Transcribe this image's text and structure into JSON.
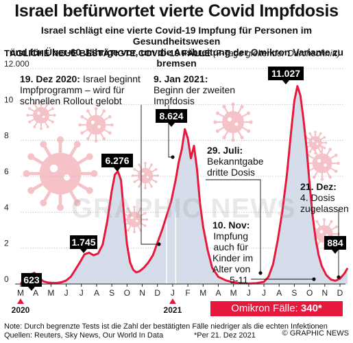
{
  "header": {
    "title": "Israel befürwortet vierte Covid Impfdosis",
    "subtitle_line1": "Israel schlägt eine vierte Covid-19 Impfung für Personen im Gesundheitswesen",
    "subtitle_line2": "und für Über-60-Jährige vor, um die Ausbreitung der Omikron Variante zu bremsen",
    "chart_heading": "TÄGLICHE NEUE BESTÄTIGTE COVID-19 FÄLLE",
    "chart_heading_note": "(7-Tage gleitender Durchschnitt)"
  },
  "chart_data": {
    "type": "area",
    "title": "TÄGLICHE NEUE BESTÄTIGTE COVID-19 FÄLLE",
    "subtitle": "(7-Tage gleitender Durchschnitt)",
    "ylim": [
      0,
      12000
    ],
    "y_ticks": [
      0,
      2000,
      4000,
      6000,
      8000,
      10000,
      12000
    ],
    "y_tick_labels": [
      "0",
      "2",
      "4",
      "6",
      "8",
      "10",
      "12.000"
    ],
    "x_labels": [
      "M",
      "A",
      "M",
      "J",
      "J",
      "A",
      "S",
      "O",
      "N",
      "D",
      "J",
      "F",
      "M",
      "A",
      "M",
      "J",
      "J",
      "A",
      "S",
      "O",
      "N",
      "D"
    ],
    "year_labels": [
      "2020",
      "2021"
    ],
    "series": [
      {
        "x": [
          0,
          0.3,
          0.6,
          0.9,
          1.2,
          1.5,
          1.8,
          2.1,
          2.4,
          2.7,
          3.0,
          3.3,
          3.6,
          3.9,
          4.2,
          4.5,
          4.8,
          5.1,
          5.4,
          5.7,
          6.0,
          6.2,
          6.4,
          6.6,
          6.8,
          7.0,
          7.2,
          7.4,
          7.6,
          7.8,
          8.1,
          8.4,
          8.7,
          9.0,
          9.3,
          9.6,
          9.9,
          10.2,
          10.4,
          10.6,
          10.8,
          11.0,
          11.2,
          11.4,
          11.6,
          11.8,
          12.0,
          12.3,
          12.6,
          13.0,
          13.5,
          14.0,
          14.5,
          15.0,
          15.5,
          16.0,
          16.3,
          16.6,
          16.9,
          17.2,
          17.5,
          17.8,
          18.0,
          18.2,
          18.4,
          18.6,
          18.8,
          19.0,
          19.2,
          19.4,
          19.6,
          19.8,
          20.1,
          20.4,
          20.7,
          21.0,
          21.3,
          21.5
        ],
        "values": [
          20,
          250,
          500,
          623,
          350,
          150,
          80,
          60,
          60,
          100,
          200,
          400,
          800,
          1200,
          1650,
          1745,
          1600,
          1700,
          2200,
          3500,
          5200,
          6100,
          6276,
          5800,
          3900,
          2200,
          1200,
          800,
          650,
          700,
          900,
          1200,
          1600,
          2300,
          3000,
          3800,
          4600,
          5800,
          6800,
          7500,
          8624,
          8100,
          7000,
          7700,
          6400,
          4500,
          3200,
          1900,
          900,
          400,
          200,
          90,
          50,
          30,
          50,
          120,
          400,
          1100,
          2400,
          4000,
          6000,
          8600,
          10200,
          11027,
          10500,
          9200,
          7600,
          5600,
          3800,
          2500,
          1600,
          1000,
          500,
          250,
          180,
          300,
          600,
          884
        ]
      }
    ],
    "peak_labels": [
      "623",
      "1.745",
      "6.276",
      "8.624",
      "11.027",
      "884"
    ]
  },
  "annotations": {
    "a1_date": "19. Dez 2020:",
    "a1_text1": "Israel beginnt",
    "a1_text2": "Impfprogramm – wird für",
    "a1_text3": "schnellen Rollout gelobt",
    "a2_date": "9. Jan 2021:",
    "a2_text1": "Beginn der zweiten",
    "a2_text2": "Impfdosis",
    "a3_date": "29. Juli:",
    "a3_text1": "Bekanntgabe",
    "a3_text2": "dritte Dosis",
    "a4_date": "10. Nov:",
    "a4_text1": "Impfung",
    "a4_text2": "auch für",
    "a4_text3": "Kinder im",
    "a4_text4": "Alter von",
    "a4_text5": "5-11",
    "a5_date": "21. Dez:",
    "a5_text1": "4. Dosis",
    "a5_text2": "zugelassen"
  },
  "omikron": {
    "label": "Omikron Fälle:",
    "value": "340*"
  },
  "watermark": "GRAPHIC NEWS",
  "footer": {
    "note": "Note: Durch begrenzte Tests ist die Zahl der bestätigten Fälle niedriger als die echten Infektionen",
    "sources": "Quellen: Reuters, Sky News, Our World In Data",
    "footnote": "*Per 21. Dez 2021",
    "copyright": "© GRAPHIC NEWS"
  },
  "colors": {
    "line": "#e6193c",
    "area": "#d5dcea",
    "virus": "#f5c2c8"
  }
}
